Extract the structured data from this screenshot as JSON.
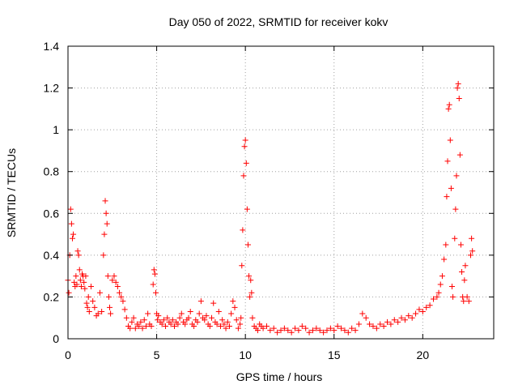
{
  "chart_data": {
    "type": "scatter",
    "title": "Day 050 of 2022, SRMTID for receiver kokv",
    "xlabel": "GPS time / hours",
    "ylabel": "SRMTID / TECUs",
    "xlim": [
      0,
      24
    ],
    "ylim": [
      0,
      1.4
    ],
    "xticks": [
      0,
      5,
      10,
      15,
      20
    ],
    "xtick_labels": [
      "0",
      "5",
      "10",
      "15",
      "20"
    ],
    "yticks": [
      0,
      0.2,
      0.4,
      0.6,
      0.8,
      1,
      1.2,
      1.4
    ],
    "ytick_labels": [
      "0",
      "0.2",
      "0.4",
      "0.6",
      "0.8",
      "1",
      "1.2",
      "1.4"
    ],
    "grid": true,
    "marker": "plus",
    "color": "#ff0000",
    "series": [
      {
        "name": "SRMTID",
        "x": [
          0.0,
          0.05,
          0.1,
          0.15,
          0.2,
          0.25,
          0.3,
          0.35,
          0.4,
          0.45,
          0.5,
          0.55,
          0.6,
          0.65,
          0.7,
          0.75,
          0.8,
          0.85,
          0.9,
          0.95,
          1.0,
          1.05,
          1.1,
          1.15,
          1.2,
          1.3,
          1.4,
          1.5,
          1.6,
          1.7,
          1.8,
          1.9,
          2.0,
          2.05,
          2.1,
          2.15,
          2.2,
          2.25,
          2.3,
          2.35,
          2.4,
          2.5,
          2.6,
          2.7,
          2.8,
          2.9,
          3.0,
          3.1,
          3.2,
          3.3,
          3.4,
          3.5,
          3.6,
          3.7,
          3.8,
          3.9,
          4.0,
          4.1,
          4.2,
          4.3,
          4.4,
          4.5,
          4.6,
          4.7,
          4.8,
          4.85,
          4.9,
          4.95,
          5.0,
          5.05,
          5.1,
          5.2,
          5.3,
          5.4,
          5.5,
          5.6,
          5.7,
          5.8,
          5.9,
          6.0,
          6.1,
          6.2,
          6.3,
          6.4,
          6.5,
          6.6,
          6.7,
          6.8,
          6.9,
          7.0,
          7.1,
          7.2,
          7.3,
          7.4,
          7.5,
          7.6,
          7.7,
          7.8,
          7.9,
          8.0,
          8.1,
          8.2,
          8.3,
          8.4,
          8.5,
          8.6,
          8.7,
          8.8,
          8.9,
          9.0,
          9.1,
          9.2,
          9.3,
          9.4,
          9.5,
          9.6,
          9.7,
          9.75,
          9.8,
          9.85,
          9.9,
          9.95,
          10.0,
          10.05,
          10.1,
          10.15,
          10.2,
          10.25,
          10.3,
          10.35,
          10.4,
          10.5,
          10.6,
          10.7,
          10.8,
          10.9,
          11.0,
          11.2,
          11.4,
          11.6,
          11.8,
          12.0,
          12.2,
          12.4,
          12.6,
          12.8,
          13.0,
          13.2,
          13.4,
          13.6,
          13.8,
          14.0,
          14.2,
          14.4,
          14.6,
          14.8,
          15.0,
          15.2,
          15.4,
          15.6,
          15.8,
          16.0,
          16.2,
          16.4,
          16.6,
          16.8,
          17.0,
          17.2,
          17.4,
          17.6,
          17.8,
          18.0,
          18.2,
          18.4,
          18.6,
          18.8,
          19.0,
          19.2,
          19.4,
          19.6,
          19.8,
          20.0,
          20.2,
          20.4,
          20.6,
          20.8,
          20.9,
          21.0,
          21.1,
          21.2,
          21.3,
          21.35,
          21.4,
          21.45,
          21.5,
          21.55,
          21.6,
          21.65,
          21.7,
          21.8,
          21.85,
          21.9,
          21.95,
          22.0,
          22.05,
          22.1,
          22.15,
          22.2,
          22.25,
          22.3,
          22.35,
          22.4,
          22.5,
          22.6,
          22.7,
          22.75,
          22.8
        ],
        "y": [
          0.28,
          0.22,
          0.4,
          0.62,
          0.55,
          0.48,
          0.5,
          0.27,
          0.25,
          0.3,
          0.26,
          0.42,
          0.4,
          0.33,
          0.28,
          0.25,
          0.31,
          0.3,
          0.27,
          0.24,
          0.3,
          0.17,
          0.15,
          0.2,
          0.13,
          0.25,
          0.18,
          0.15,
          0.11,
          0.12,
          0.22,
          0.13,
          0.4,
          0.5,
          0.66,
          0.6,
          0.55,
          0.3,
          0.2,
          0.15,
          0.12,
          0.28,
          0.3,
          0.27,
          0.25,
          0.22,
          0.2,
          0.18,
          0.14,
          0.1,
          0.06,
          0.05,
          0.08,
          0.1,
          0.05,
          0.07,
          0.06,
          0.08,
          0.05,
          0.09,
          0.06,
          0.12,
          0.07,
          0.06,
          0.26,
          0.33,
          0.31,
          0.22,
          0.12,
          0.09,
          0.11,
          0.08,
          0.07,
          0.09,
          0.06,
          0.1,
          0.08,
          0.07,
          0.09,
          0.06,
          0.08,
          0.07,
          0.1,
          0.12,
          0.08,
          0.07,
          0.09,
          0.1,
          0.13,
          0.07,
          0.06,
          0.09,
          0.08,
          0.12,
          0.18,
          0.1,
          0.09,
          0.11,
          0.07,
          0.06,
          0.1,
          0.17,
          0.08,
          0.07,
          0.13,
          0.06,
          0.09,
          0.07,
          0.05,
          0.08,
          0.06,
          0.12,
          0.18,
          0.15,
          0.09,
          0.05,
          0.07,
          0.1,
          0.35,
          0.52,
          0.78,
          0.92,
          0.95,
          0.84,
          0.62,
          0.45,
          0.3,
          0.2,
          0.28,
          0.22,
          0.1,
          0.06,
          0.05,
          0.04,
          0.07,
          0.06,
          0.05,
          0.06,
          0.04,
          0.05,
          0.03,
          0.04,
          0.05,
          0.04,
          0.03,
          0.05,
          0.04,
          0.06,
          0.05,
          0.03,
          0.04,
          0.05,
          0.04,
          0.03,
          0.04,
          0.05,
          0.04,
          0.06,
          0.05,
          0.04,
          0.03,
          0.05,
          0.04,
          0.07,
          0.12,
          0.1,
          0.07,
          0.06,
          0.05,
          0.07,
          0.06,
          0.08,
          0.07,
          0.09,
          0.08,
          0.1,
          0.09,
          0.11,
          0.1,
          0.12,
          0.14,
          0.13,
          0.15,
          0.16,
          0.19,
          0.2,
          0.22,
          0.26,
          0.3,
          0.38,
          0.45,
          0.68,
          0.85,
          1.1,
          1.12,
          0.95,
          0.72,
          0.25,
          0.2,
          0.48,
          0.62,
          0.78,
          1.2,
          1.22,
          1.15,
          0.88,
          0.45,
          0.32,
          0.2,
          0.18,
          0.28,
          0.35,
          0.2,
          0.18,
          0.4,
          0.48,
          0.42
        ]
      }
    ]
  }
}
